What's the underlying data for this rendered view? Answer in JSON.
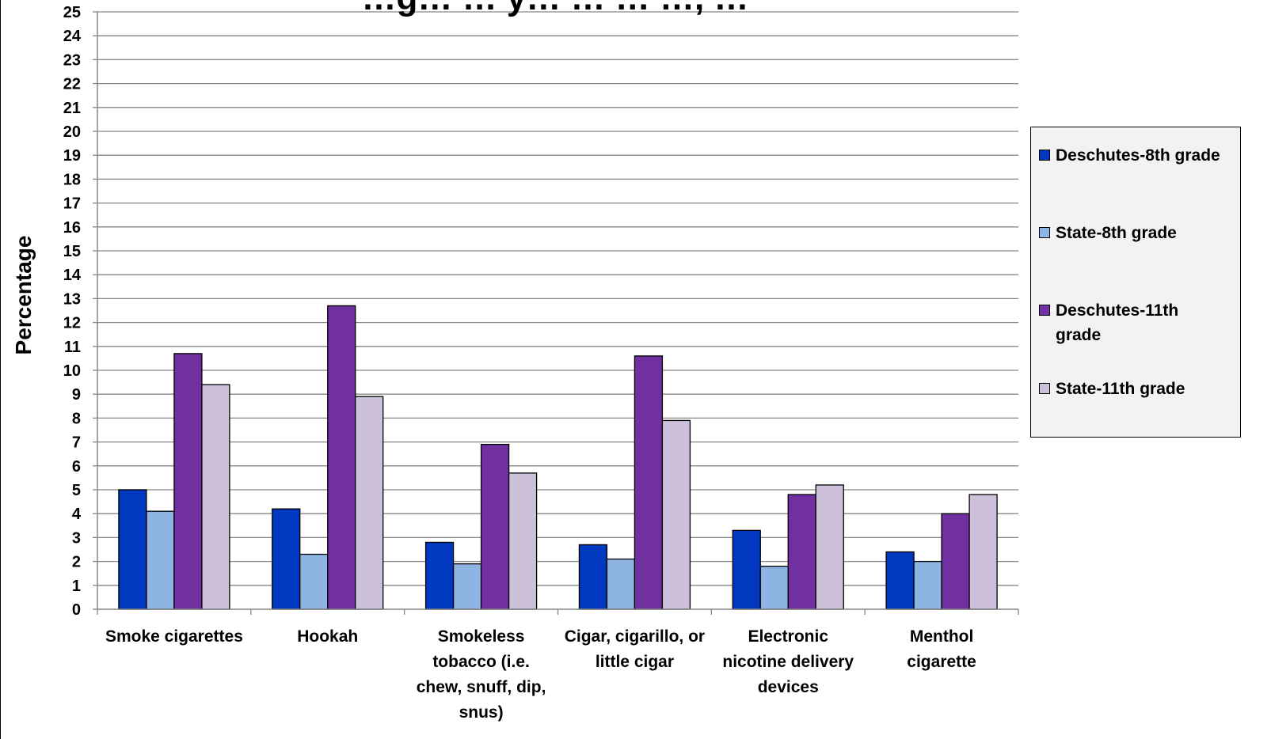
{
  "chart_data": {
    "type": "bar",
    "title": "…g… … y… … … …, …",
    "xlabel": "",
    "ylabel": "Percentage",
    "ylim": [
      0,
      25
    ],
    "ytick_step": 1,
    "grid": true,
    "legend_position": "right",
    "categories": [
      "Smoke cigarettes",
      "Hookah",
      "Smokeless tobacco (i.e. chew, snuff, dip, snus)",
      "Cigar, cigarillo, or little cigar",
      "Electronic nicotine delivery devices",
      "Menthol cigarette"
    ],
    "category_lines": [
      [
        "Smoke cigarettes"
      ],
      [
        "Hookah"
      ],
      [
        "Smokeless",
        "tobacco (i.e.",
        "chew, snuff, dip,",
        "snus)"
      ],
      [
        "Cigar, cigarillo, or",
        "little cigar"
      ],
      [
        "Electronic",
        "nicotine delivery",
        "devices"
      ],
      [
        "Menthol",
        "cigarette"
      ]
    ],
    "series": [
      {
        "name": "Deschutes-8th grade",
        "color": "#0039BF",
        "values": [
          5.0,
          4.2,
          2.8,
          2.7,
          3.3,
          2.4
        ]
      },
      {
        "name": "State-8th grade",
        "color": "#8DB4E2",
        "values": [
          4.1,
          2.3,
          1.9,
          2.1,
          1.8,
          2.0
        ]
      },
      {
        "name": "Deschutes-11th grade",
        "color": "#7030A0",
        "values": [
          10.7,
          12.7,
          6.9,
          10.6,
          4.8,
          4.0
        ]
      },
      {
        "name": "State-11th grade",
        "color": "#CCC0DA",
        "values": [
          9.4,
          8.9,
          5.7,
          7.9,
          5.2,
          4.8
        ]
      }
    ]
  },
  "legend": {
    "items": [
      {
        "lines": [
          "Deschutes-8th grade"
        ]
      },
      {
        "lines": [
          "State-8th grade"
        ]
      },
      {
        "lines": [
          "Deschutes-11th",
          "grade"
        ]
      },
      {
        "lines": [
          "State-11th grade"
        ]
      }
    ]
  }
}
